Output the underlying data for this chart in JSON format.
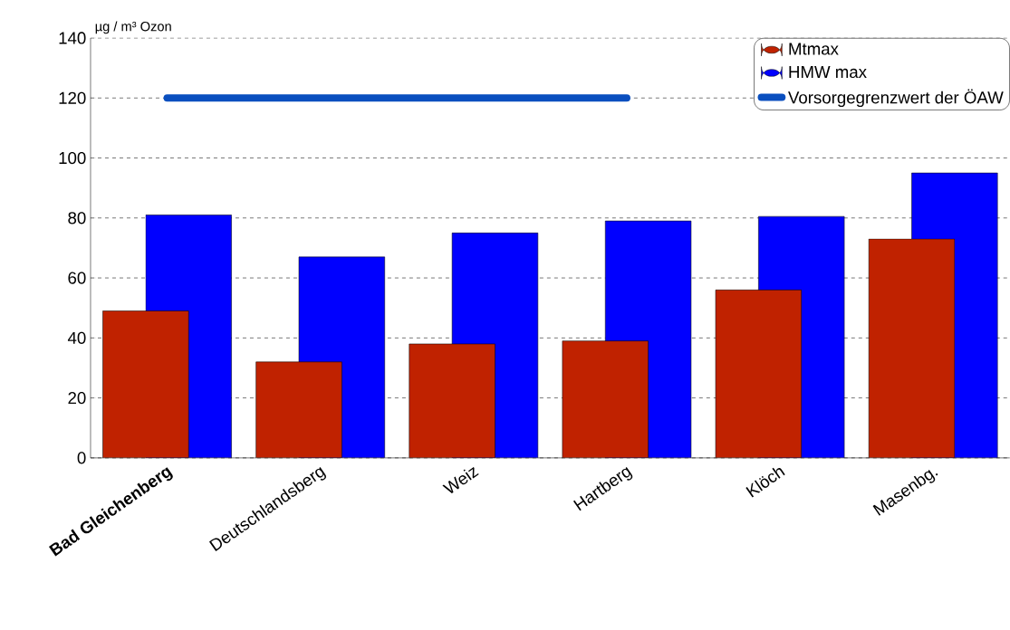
{
  "chart_data": {
    "type": "bar",
    "ylabel": "µg / m³ Ozon",
    "categories": [
      "**Bad Gleichenberg**",
      "Deutschlandsberg",
      "Weiz",
      "Hartberg",
      "Klöch",
      "Masenbg."
    ],
    "series": [
      {
        "name": "Mtmax",
        "color": "#c02200",
        "values": [
          49,
          32,
          38,
          39,
          56,
          73
        ]
      },
      {
        "name": "HMW max",
        "color": "#0000ff",
        "values": [
          81,
          67,
          75,
          79,
          80.5,
          95
        ]
      },
      {
        "name": "Vorsorgegrenzwert der ÖAW",
        "type": "line",
        "color": "#0a4fbf",
        "values": [
          120,
          120,
          120,
          120,
          null,
          null
        ]
      }
    ],
    "ylim": [
      0,
      140
    ],
    "yticks": [
      0,
      20,
      40,
      60,
      80,
      100,
      120,
      140
    ],
    "grid": "y",
    "legend": "top right"
  }
}
